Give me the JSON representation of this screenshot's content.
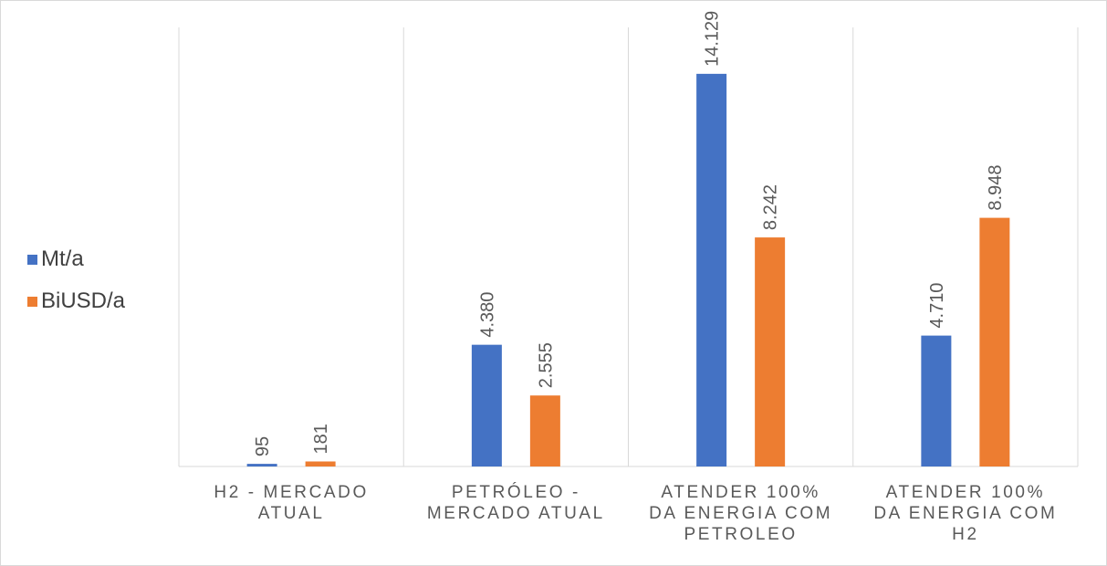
{
  "chart_data": {
    "type": "bar",
    "title": "",
    "xlabel": "",
    "ylabel": "",
    "categories": [
      [
        "H2 - MERCADO",
        "ATUAL"
      ],
      [
        "PETRÓLEO -",
        "MERCADO ATUAL"
      ],
      [
        "ATENDER 100%",
        "DA ENERGIA COM",
        "PETROLEO"
      ],
      [
        "ATENDER 100%",
        "DA ENERGIA COM",
        "H2"
      ]
    ],
    "series": [
      {
        "name": "Mt/a",
        "color": "#4472c4",
        "values": [
          95,
          4380,
          14129,
          4710
        ],
        "labels": [
          "95",
          "4.380",
          "14.129",
          "4.710"
        ]
      },
      {
        "name": "BiUSD/a",
        "color": "#ed7d31",
        "values": [
          181,
          2555,
          8242,
          8948
        ],
        "labels": [
          "181",
          "2.555",
          "8.242",
          "8.948"
        ]
      }
    ],
    "ylim": [
      0,
      15800
    ],
    "grid": "vertical-separators",
    "legend": "left"
  }
}
